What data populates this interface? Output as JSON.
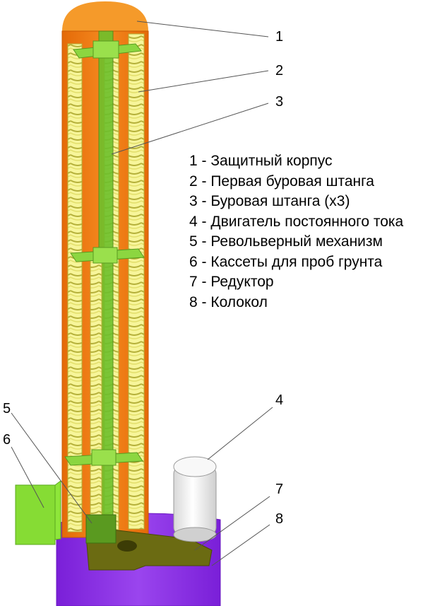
{
  "legend": [
    "1 - Защитный корпус",
    "2 - Первая буровая штанга",
    "3 - Буровая штанга (х3)",
    "4 - Двигатель постоянного тока",
    "5 - Револьверный механизм",
    "6 - Кассеты для проб грунта",
    "7 - Редуктор",
    "8 - Колокол"
  ],
  "callouts": [
    "1",
    "2",
    "3",
    "4",
    "5",
    "6",
    "7",
    "8"
  ],
  "colors": {
    "housing": "#f07a12",
    "housing_cap": "#f59a2a",
    "rods": "#f2f07a",
    "brackets": "#8cd640",
    "motor": "#f2f2f2",
    "gearbox": "#6b6b12",
    "bell": "#8a2be6",
    "cassette": "#8ee63a",
    "leader_line": "#555555"
  }
}
